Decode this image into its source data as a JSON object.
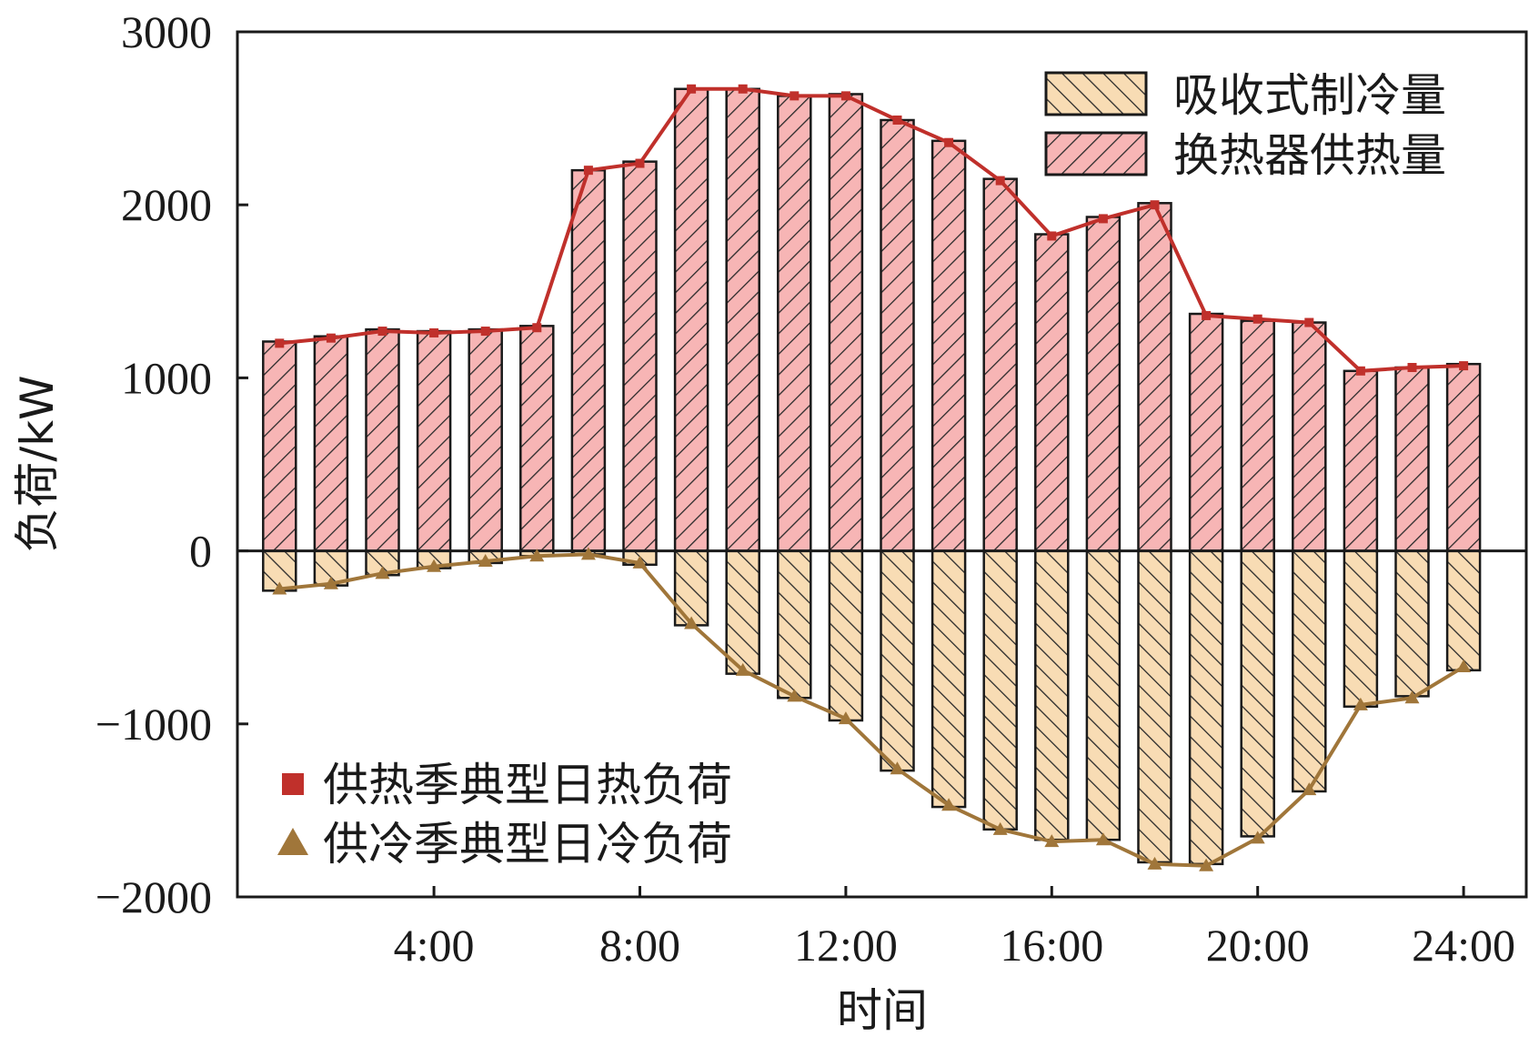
{
  "chart_data": {
    "type": "bar",
    "x": [
      1,
      2,
      3,
      4,
      5,
      6,
      7,
      8,
      9,
      10,
      11,
      12,
      13,
      14,
      15,
      16,
      17,
      18,
      19,
      20,
      21,
      22,
      23,
      24
    ],
    "xticks": [
      "4:00",
      "8:00",
      "12:00",
      "16:00",
      "20:00",
      "24:00"
    ],
    "xtick_values": [
      4,
      8,
      12,
      16,
      20,
      24
    ],
    "xlabel": "时间",
    "ylabel": "负荷/kW",
    "ylim": [
      -2000,
      3000
    ],
    "yticks": [
      "3000",
      "2000",
      "1000",
      "0",
      "−1000",
      "−2000"
    ],
    "ytick_values": [
      3000,
      2000,
      1000,
      0,
      -1000,
      -2000
    ],
    "bar_series": [
      {
        "name": "吸收式制冷量",
        "color": "#f8dcb4",
        "hatch": "backslash",
        "values": [
          -230,
          -200,
          -140,
          -100,
          -70,
          -30,
          -20,
          -80,
          -430,
          -710,
          -850,
          -980,
          -1270,
          -1480,
          -1610,
          -1670,
          -1670,
          -1800,
          -1810,
          -1650,
          -1390,
          -900,
          -840,
          -690
        ]
      },
      {
        "name": "换热器供热量",
        "color": "#f7b5b5",
        "hatch": "slash",
        "values": [
          1210,
          1240,
          1280,
          1270,
          1280,
          1300,
          2200,
          2250,
          2670,
          2670,
          2630,
          2640,
          2490,
          2370,
          2150,
          1830,
          1930,
          2010,
          1370,
          1330,
          1320,
          1040,
          1060,
          1080
        ]
      }
    ],
    "line_series": [
      {
        "name": "供热季典型日热负荷",
        "color": "#c0302b",
        "marker": "square",
        "values": [
          1200,
          1230,
          1270,
          1260,
          1270,
          1290,
          2200,
          2240,
          2670,
          2670,
          2630,
          2630,
          2490,
          2360,
          2140,
          1820,
          1920,
          2000,
          1360,
          1340,
          1320,
          1040,
          1060,
          1070
        ]
      },
      {
        "name": "供冷季典型日冷负荷",
        "color": "#a0763a",
        "marker": "triangle",
        "values": [
          -220,
          -190,
          -130,
          -90,
          -60,
          -30,
          -20,
          -70,
          -420,
          -690,
          -840,
          -970,
          -1260,
          -1470,
          -1610,
          -1680,
          -1670,
          -1810,
          -1820,
          -1660,
          -1380,
          -890,
          -850,
          -670
        ]
      }
    ],
    "grid": false,
    "legend_bars": "top-right",
    "legend_lines": "bottom-left"
  }
}
